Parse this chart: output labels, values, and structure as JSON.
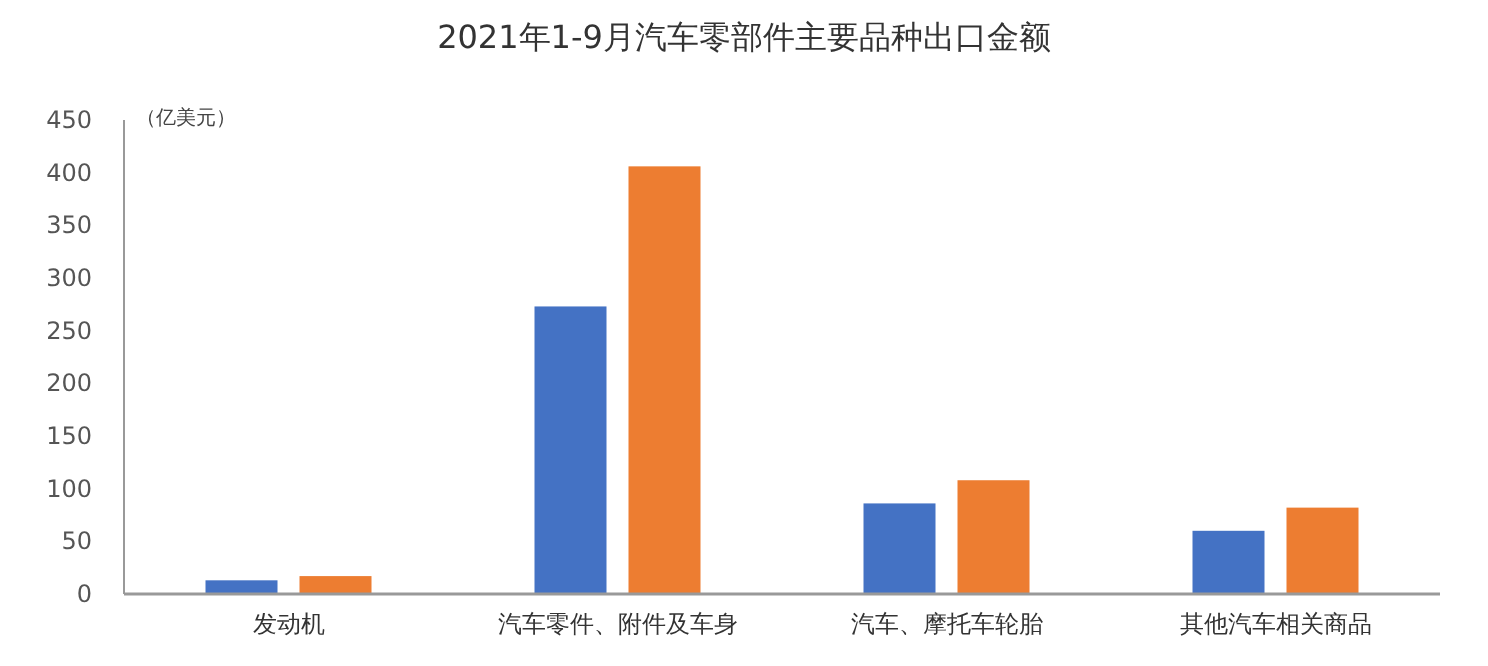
{
  "chart_data": {
    "type": "bar",
    "title": "2021年1-9月汽车零部件主要品种出口金额",
    "ylabel": "（亿美元）",
    "categories": [
      "发动机",
      "汽车零件、附件及车身",
      "汽车、摩托车轮胎",
      "其他汽车相关商品"
    ],
    "series": [
      {
        "color": "#4472c4",
        "values": [
          13,
          273,
          86,
          60
        ]
      },
      {
        "color": "#ed7d31",
        "values": [
          17,
          406,
          108,
          82
        ]
      }
    ],
    "ylim": [
      0,
      450
    ],
    "yticks": [
      0,
      50,
      100,
      150,
      200,
      250,
      300,
      350,
      400,
      450
    ],
    "grid": false
  }
}
